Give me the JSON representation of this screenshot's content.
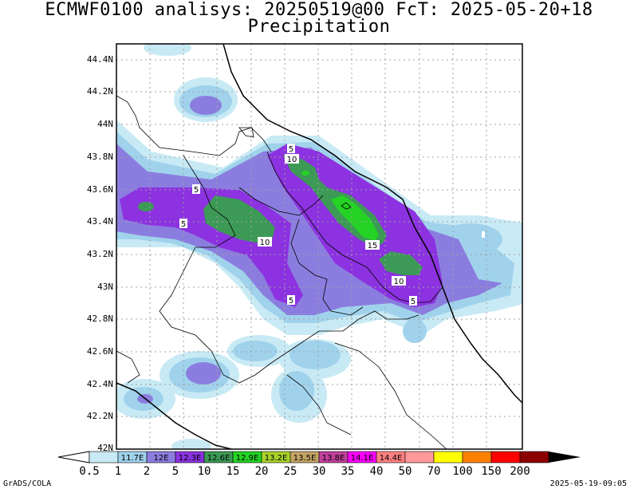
{
  "title": "ECMWF0100 analisys: 20250519@00 FcT: 2025-05-20+18",
  "subtitle": "Precipitation",
  "lat_labels": [
    "44.4N",
    "44.2N",
    "44N",
    "43.8N",
    "43.6N",
    "43.4N",
    "43.2N",
    "43N",
    "42.8N",
    "42.6N",
    "42.4N",
    "42.2N",
    "42N"
  ],
  "contour_labels": [
    "5",
    "10",
    "5",
    "5",
    "10",
    "5",
    "15",
    "10",
    "5"
  ],
  "colorbar": {
    "values": [
      "0.5",
      "1",
      "2",
      "5",
      "10",
      "15",
      "20",
      "25",
      "30",
      "35",
      "40",
      "50",
      "70",
      "100",
      "150",
      "200"
    ],
    "colors": [
      "#c8eaf5",
      "#a0d2ec",
      "#8b7ddf",
      "#8c32e0",
      "#3c9a56",
      "#24d324",
      "#a8d22a",
      "#c4a464",
      "#c0409c",
      "#ff00ff",
      "#ff8080",
      "#ff9898",
      "#ffff00",
      "#ff8000",
      "#ff0000",
      "#8b0000"
    ],
    "box_labels": [
      "11.7E",
      "12E",
      "12.3E",
      "12.6E",
      "12.9E",
      "13.2E",
      "13.5E",
      "13.8E",
      "14.1E",
      "14.4E"
    ]
  },
  "footer_left": "GrADS/COLA",
  "footer_right": "2025-05-19-09:05"
}
